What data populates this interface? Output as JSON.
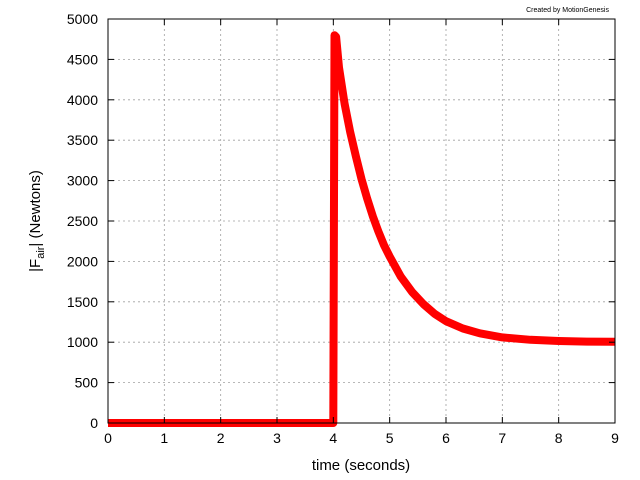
{
  "chart_data": {
    "type": "line",
    "credit": "Created by MotionGenesis",
    "xlabel": "time  (seconds)",
    "ylabel_prefix": "|F",
    "ylabel_sub": "air",
    "ylabel_suffix": "|  (Newtons)",
    "xlim": [
      0,
      9
    ],
    "ylim": [
      0,
      5000
    ],
    "xticks": [
      0,
      1,
      2,
      3,
      4,
      5,
      6,
      7,
      8,
      9
    ],
    "yticks": [
      0,
      500,
      1000,
      1500,
      2000,
      2500,
      3000,
      3500,
      4000,
      4500,
      5000
    ],
    "grid": true,
    "series_color": "#ff0000",
    "series": [
      {
        "x": [
          0,
          4.0,
          4.02,
          4.05,
          4.1,
          4.2,
          4.3,
          4.4,
          4.5,
          4.6,
          4.7,
          4.8,
          4.9,
          5.0,
          5.2,
          5.4,
          5.6,
          5.8,
          6.0,
          6.3,
          6.6,
          7.0,
          7.5,
          8.0,
          8.5,
          9.0
        ],
        "y": [
          0,
          0,
          4800,
          4780,
          4400,
          3950,
          3600,
          3300,
          3020,
          2780,
          2560,
          2370,
          2200,
          2060,
          1810,
          1620,
          1470,
          1350,
          1260,
          1170,
          1110,
          1060,
          1030,
          1015,
          1008,
          1005
        ]
      }
    ]
  }
}
